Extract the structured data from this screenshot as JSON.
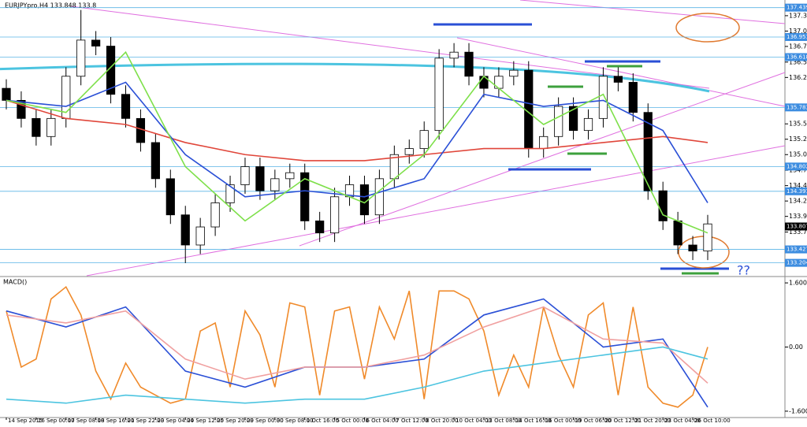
{
  "chart_data": [
    {
      "type": "candlestick",
      "title": "EURJPYpro,H4  133.848 133.8",
      "categories": [
        "14 Sep 2015",
        null,
        "16 Sep 00:00",
        null,
        "17 Sep 08:00",
        null,
        "18 Sep 16:00",
        null,
        "21 Sep 22:00",
        null,
        "23 Sep 04:00",
        null,
        "24 Sep 12:00",
        null,
        "25 Sep 20:00",
        null,
        "29 Sep 00:00",
        null,
        "30 Sep 08:00",
        null,
        "1 Oct 16:00",
        null,
        "5 Oct 00:00",
        null,
        "6 Oct 04:00",
        null,
        "7 Oct 12:00",
        null,
        "8 Oct 20:00",
        null,
        "10 Oct 04:00",
        null,
        "13 Oct 08:00",
        null,
        "14 Oct 16:00",
        null,
        "16 Oct 00:00",
        null,
        "19 Oct 06:00",
        null,
        "20 Oct 12:00",
        null,
        "21 Oct 20:00",
        null,
        "23 Oct 04:00",
        null,
        "26 Oct 10:00",
        null
      ],
      "open": [
        136.1,
        135.9,
        135.6,
        135.3,
        135.6,
        136.3,
        136.9,
        136.8,
        136.0,
        135.6,
        135.2,
        134.6,
        134.0,
        133.5,
        133.8,
        134.2,
        134.5,
        134.8,
        134.4,
        134.6,
        134.7,
        133.9,
        133.7,
        134.3,
        134.5,
        134.0,
        134.6,
        135.0,
        135.1,
        135.4,
        136.6,
        136.7,
        136.3,
        136.1,
        136.3,
        136.4,
        135.1,
        135.3,
        135.8,
        135.4,
        135.6,
        136.3,
        136.2,
        135.7,
        134.4,
        133.9,
        133.5,
        133.4
      ],
      "high": [
        136.25,
        136.05,
        135.75,
        135.75,
        136.45,
        137.4,
        137.05,
        136.95,
        136.15,
        135.75,
        135.35,
        134.75,
        134.15,
        133.95,
        134.35,
        134.65,
        134.95,
        134.95,
        134.75,
        134.85,
        134.85,
        134.05,
        134.45,
        134.65,
        134.65,
        134.75,
        135.15,
        135.25,
        135.55,
        136.75,
        136.85,
        136.85,
        136.45,
        136.45,
        136.55,
        136.55,
        135.45,
        135.95,
        135.95,
        135.75,
        136.45,
        136.45,
        136.35,
        135.85,
        134.55,
        134.05,
        133.65,
        134.0
      ],
      "low": [
        135.75,
        135.45,
        135.15,
        135.15,
        135.45,
        136.15,
        136.65,
        135.85,
        135.45,
        135.05,
        134.45,
        133.85,
        133.2,
        133.35,
        133.65,
        134.05,
        134.35,
        134.25,
        134.25,
        134.45,
        133.75,
        133.55,
        133.55,
        134.15,
        133.85,
        133.85,
        134.45,
        134.85,
        134.95,
        135.25,
        136.45,
        136.15,
        135.95,
        135.95,
        136.15,
        134.95,
        134.95,
        135.15,
        135.25,
        135.25,
        135.45,
        136.05,
        135.55,
        134.25,
        133.75,
        133.35,
        133.25,
        133.25
      ],
      "close": [
        135.9,
        135.6,
        135.3,
        135.6,
        136.3,
        136.9,
        136.8,
        136.0,
        135.6,
        135.2,
        134.6,
        134.0,
        133.5,
        133.8,
        134.2,
        134.5,
        134.8,
        134.4,
        134.6,
        134.7,
        133.9,
        133.7,
        134.3,
        134.5,
        134.0,
        134.6,
        135.0,
        135.1,
        135.4,
        136.6,
        136.7,
        136.3,
        136.1,
        136.3,
        136.4,
        135.1,
        135.3,
        135.8,
        135.4,
        135.6,
        136.3,
        136.2,
        135.7,
        134.4,
        133.9,
        133.5,
        133.4,
        133.85
      ],
      "lines": [
        {
          "color": "#e0463a",
          "x": [
            0,
            4,
            8,
            12,
            16,
            20,
            24,
            28,
            32,
            36,
            40,
            44,
            47
          ],
          "values": [
            135.9,
            135.6,
            135.5,
            135.2,
            135.0,
            134.9,
            134.9,
            135.0,
            135.1,
            135.1,
            135.2,
            135.3,
            135.2
          ]
        },
        {
          "color": "#2a4fd6",
          "x": [
            0,
            4,
            8,
            12,
            16,
            20,
            24,
            28,
            32,
            36,
            40,
            44,
            47
          ],
          "values": [
            135.9,
            135.8,
            136.2,
            135.0,
            134.3,
            134.4,
            134.3,
            134.6,
            136.0,
            135.8,
            135.9,
            135.4,
            134.2
          ]
        },
        {
          "color": "#7ee04a",
          "x": [
            0,
            4,
            8,
            12,
            16,
            20,
            24,
            28,
            32,
            36,
            40,
            44,
            47
          ],
          "values": [
            135.9,
            135.7,
            136.7,
            134.8,
            133.9,
            134.6,
            134.2,
            135.0,
            136.3,
            135.5,
            136.0,
            134.0,
            133.7
          ]
        }
      ],
      "levels": [
        137.439,
        136.951,
        136.618,
        135.783,
        134.802,
        134.391,
        133.427,
        133.204
      ],
      "current": 133.807,
      "annotation": "??",
      "ylim": [
        132.99,
        137.5
      ],
      "yticks": [
        {
          "value": 137.305,
          "label": "137.305"
        },
        {
          "value": 137.05,
          "label": "137.050"
        },
        136.795,
        136.535,
        {
          "value": 136.28,
          "label": "136.280"
        },
        135.765,
        {
          "value": 135.51,
          "label": "135.510"
        },
        135.255,
        {
          "value": 135.0,
          "label": "135.000"
        },
        {
          "value": 134.74,
          "label": "134.740"
        },
        134.485,
        {
          "value": 134.23,
          "label": "134.230"
        },
        133.975,
        133.715,
        133.205
      ]
    },
    {
      "type": "oscillator",
      "title": "MACD()",
      "series": [
        {
          "color": "#f08a2a",
          "x": [
            0,
            1,
            2,
            3,
            4,
            5,
            6,
            7,
            8,
            9,
            10,
            11,
            12,
            13,
            14,
            15,
            16,
            17,
            18,
            19,
            20,
            21,
            22,
            23,
            24,
            25,
            26,
            27,
            28,
            29,
            30,
            31,
            32,
            33,
            34,
            35,
            36,
            37,
            38,
            39,
            40,
            41,
            42,
            43,
            44,
            45,
            46,
            47
          ],
          "values": [
            0.9,
            -0.5,
            -0.3,
            1.2,
            1.5,
            0.8,
            -0.6,
            -1.3,
            -0.4,
            -1.0,
            -1.2,
            -1.4,
            -1.3,
            0.4,
            0.6,
            -1.0,
            0.9,
            0.3,
            -1.0,
            1.1,
            1.0,
            -1.2,
            0.9,
            1.0,
            -0.8,
            1.0,
            0.2,
            1.4,
            -1.3,
            1.4,
            1.4,
            1.2,
            0.4,
            -1.2,
            -0.2,
            -1.0,
            1.0,
            -0.2,
            -1.0,
            0.8,
            1.1,
            -1.2,
            1.0,
            -1.0,
            -1.4,
            -1.5,
            -1.2,
            0.0
          ]
        },
        {
          "color": "#2a4fd6",
          "x": [
            0,
            4,
            8,
            12,
            16,
            20,
            24,
            28,
            32,
            36,
            40,
            44,
            47
          ],
          "values": [
            0.9,
            0.5,
            1.0,
            -0.6,
            -1.0,
            -0.5,
            -0.5,
            -0.3,
            0.8,
            1.2,
            0.0,
            0.2,
            -1.5
          ]
        },
        {
          "color": "#f0a0a0",
          "x": [
            0,
            4,
            8,
            12,
            16,
            20,
            24,
            28,
            32,
            36,
            40,
            44,
            47
          ],
          "values": [
            0.8,
            0.6,
            0.9,
            -0.3,
            -0.8,
            -0.5,
            -0.5,
            -0.2,
            0.5,
            1.0,
            0.2,
            0.1,
            -0.9
          ]
        },
        {
          "color": "#4cc4e0",
          "x": [
            0,
            4,
            8,
            12,
            16,
            20,
            24,
            28,
            32,
            36,
            40,
            44,
            47
          ],
          "values": [
            -1.3,
            -1.4,
            -1.2,
            -1.3,
            -1.4,
            -1.3,
            -1.3,
            -1.0,
            -0.6,
            -0.4,
            -0.2,
            0.0,
            -0.3
          ]
        }
      ],
      "ylim": [
        -1.7,
        1.7
      ],
      "yticks": [
        1.6001,
        {
          "value": 0,
          "label": "0.00"
        },
        -1.6001
      ]
    }
  ]
}
